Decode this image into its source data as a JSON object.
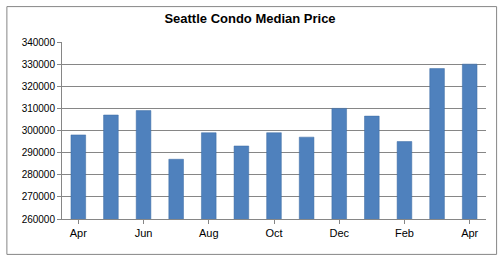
{
  "chart_data": {
    "type": "bar",
    "title": "Seattle Condo Median Price",
    "categories": [
      "Apr",
      null,
      "Jun",
      null,
      "Aug",
      null,
      "Oct",
      null,
      "Dec",
      null,
      "Feb",
      null,
      "Apr"
    ],
    "values": [
      298000,
      307000,
      309000,
      287000,
      299000,
      293000,
      299000,
      297000,
      310000,
      306500,
      295000,
      328000,
      330000
    ],
    "color": "#4f81bd",
    "ylim": [
      260000,
      340000
    ],
    "yticks": [
      260000,
      270000,
      280000,
      290000,
      300000,
      310000,
      320000,
      330000,
      340000
    ],
    "grid": true
  }
}
